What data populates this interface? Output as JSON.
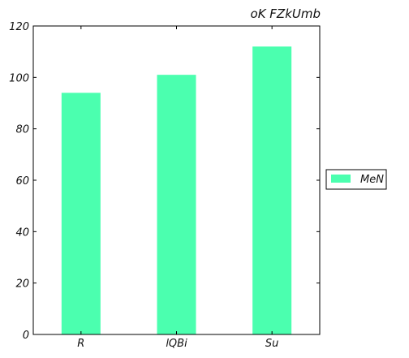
{
  "chart_data": {
    "type": "bar",
    "title": "oK FZkUmb",
    "categories": [
      "R",
      "lQBi",
      "Su"
    ],
    "series": [
      {
        "name": "MeN",
        "values": [
          94,
          101,
          112
        ],
        "color": "#4bffaf"
      }
    ],
    "ylim": [
      0,
      120
    ],
    "yticks": [
      0,
      20,
      40,
      60,
      80,
      100,
      120
    ],
    "grid": false,
    "legend_position": "right"
  }
}
